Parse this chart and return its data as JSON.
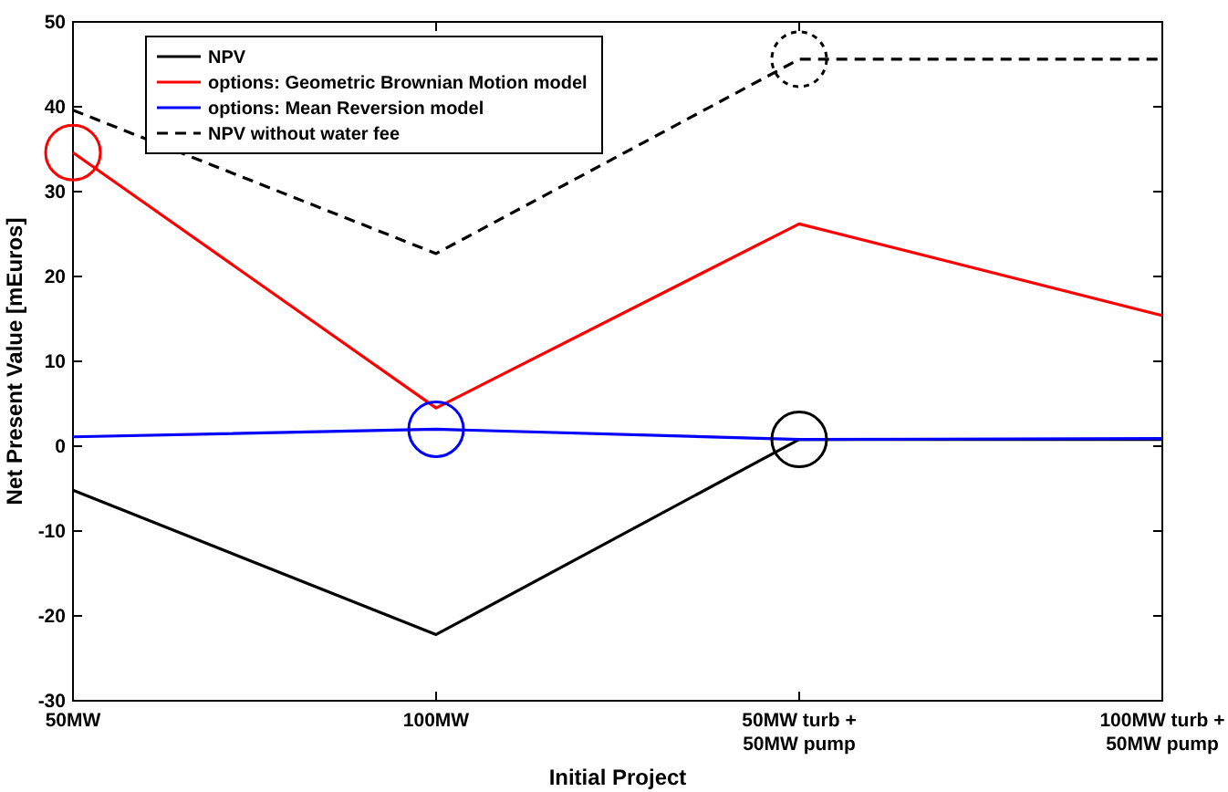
{
  "chart_data": {
    "type": "line",
    "xlabel": "Initial Project",
    "ylabel": "Net Present Value [mEuros]",
    "categories": [
      "50MW",
      "100MW",
      "50MW turb +\n50MW pump",
      "100MW turb +\n50MW pump"
    ],
    "series": [
      {
        "name": "NPV",
        "color": "#000000",
        "values": [
          -5.2,
          -22.2,
          0.8,
          0.8
        ],
        "line_style": "solid"
      },
      {
        "name": "options: Geometric Brownian Motion model",
        "color": "#ff0000",
        "values": [
          34.6,
          4.5,
          26.2,
          15.4
        ],
        "line_style": "solid"
      },
      {
        "name": "options: Mean Reversion model",
        "color": "#0000ff",
        "values": [
          1.1,
          2.0,
          0.8,
          0.9
        ],
        "line_style": "solid"
      },
      {
        "name": "NPV without water fee",
        "color": "#000000",
        "values": [
          39.6,
          22.7,
          45.6,
          45.6
        ],
        "line_style": "dashed"
      }
    ],
    "ylim": [
      -30,
      50
    ],
    "yticks": [
      -30,
      -20,
      -10,
      0,
      10,
      20,
      30,
      40,
      50
    ],
    "grid": false,
    "legend": "top left",
    "marker": "none"
  }
}
